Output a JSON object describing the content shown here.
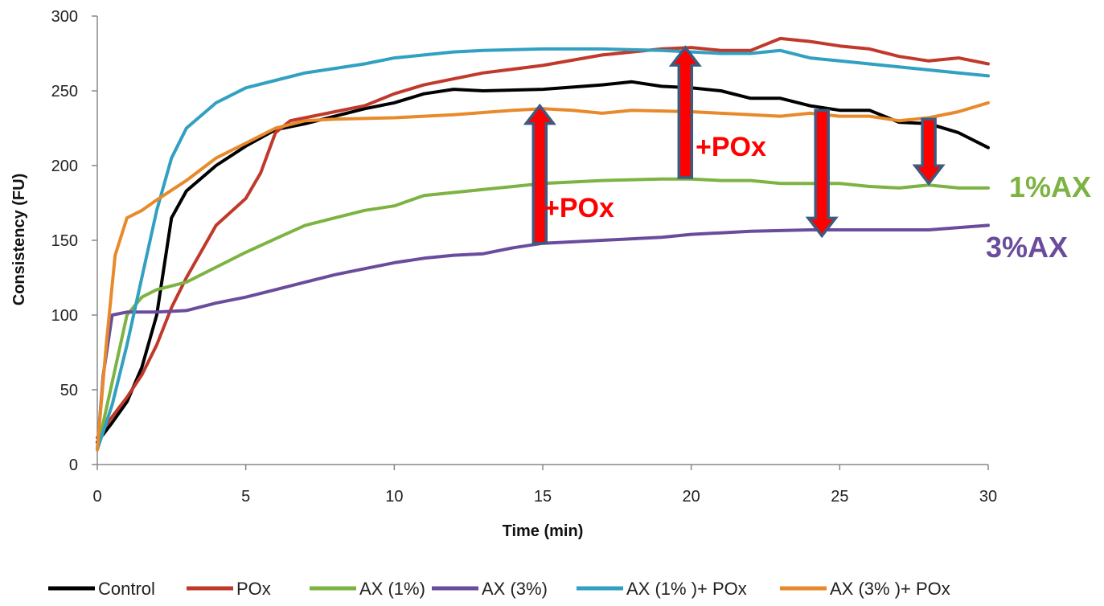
{
  "chart_data": {
    "type": "line",
    "title": "",
    "xlabel": "Time (min)",
    "ylabel": "Consistency (FU)",
    "xlim": [
      0,
      30
    ],
    "ylim": [
      0,
      300
    ],
    "xticks": [
      0,
      5,
      10,
      15,
      20,
      25,
      30
    ],
    "yticks": [
      0,
      50,
      100,
      150,
      200,
      250,
      300
    ],
    "ytick_labels": [
      "0",
      "50",
      "100",
      "150",
      "200",
      "250",
      "300"
    ],
    "grid": false,
    "legend_position": "bottom",
    "series": [
      {
        "name": "Control",
        "color": "#000000",
        "points": [
          [
            0,
            15
          ],
          [
            0.5,
            28
          ],
          [
            1,
            42
          ],
          [
            1.5,
            65
          ],
          [
            2,
            100
          ],
          [
            2.5,
            165
          ],
          [
            3,
            183
          ],
          [
            4,
            200
          ],
          [
            5,
            213
          ],
          [
            6,
            224
          ],
          [
            7,
            228
          ],
          [
            8,
            233
          ],
          [
            9,
            238
          ],
          [
            10,
            242
          ],
          [
            11,
            248
          ],
          [
            12,
            251
          ],
          [
            13,
            250
          ],
          [
            15,
            251
          ],
          [
            17,
            254
          ],
          [
            18,
            256
          ],
          [
            19,
            253
          ],
          [
            20,
            252
          ],
          [
            21,
            250
          ],
          [
            22,
            245
          ],
          [
            23,
            245
          ],
          [
            24,
            240
          ],
          [
            25,
            237
          ],
          [
            26,
            237
          ],
          [
            27,
            229
          ],
          [
            28,
            228
          ],
          [
            29,
            222
          ],
          [
            30,
            212
          ]
        ]
      },
      {
        "name": "POx",
        "color": "#c0392b",
        "points": [
          [
            0,
            18
          ],
          [
            0.5,
            32
          ],
          [
            1,
            45
          ],
          [
            1.5,
            60
          ],
          [
            2,
            80
          ],
          [
            2.5,
            105
          ],
          [
            3,
            125
          ],
          [
            4,
            160
          ],
          [
            5,
            178
          ],
          [
            5.5,
            195
          ],
          [
            6,
            222
          ],
          [
            6.5,
            230
          ],
          [
            7,
            232
          ],
          [
            8,
            236
          ],
          [
            9,
            240
          ],
          [
            10,
            248
          ],
          [
            11,
            254
          ],
          [
            12,
            258
          ],
          [
            13,
            262
          ],
          [
            15,
            267
          ],
          [
            17,
            274
          ],
          [
            19,
            278
          ],
          [
            20,
            279
          ],
          [
            21,
            277
          ],
          [
            22,
            277
          ],
          [
            23,
            285
          ],
          [
            24,
            283
          ],
          [
            25,
            280
          ],
          [
            26,
            278
          ],
          [
            27,
            273
          ],
          [
            28,
            270
          ],
          [
            29,
            272
          ],
          [
            30,
            268
          ]
        ]
      },
      {
        "name": "AX (1%)",
        "color": "#7cb342",
        "points": [
          [
            0,
            10
          ],
          [
            0.5,
            55
          ],
          [
            1,
            100
          ],
          [
            1.5,
            112
          ],
          [
            2,
            117
          ],
          [
            3,
            122
          ],
          [
            4,
            132
          ],
          [
            5,
            142
          ],
          [
            6,
            151
          ],
          [
            7,
            160
          ],
          [
            8,
            165
          ],
          [
            9,
            170
          ],
          [
            10,
            173
          ],
          [
            11,
            180
          ],
          [
            12,
            182
          ],
          [
            13,
            184
          ],
          [
            15,
            188
          ],
          [
            17,
            190
          ],
          [
            19,
            191
          ],
          [
            20,
            191
          ],
          [
            21,
            190
          ],
          [
            22,
            190
          ],
          [
            23,
            188
          ],
          [
            24,
            188
          ],
          [
            25,
            188
          ],
          [
            26,
            186
          ],
          [
            27,
            185
          ],
          [
            28,
            187
          ],
          [
            29,
            185
          ],
          [
            30,
            185
          ]
        ]
      },
      {
        "name": "AX (3%)",
        "color": "#6a4c9c",
        "points": [
          [
            0,
            10
          ],
          [
            0.2,
            60
          ],
          [
            0.5,
            100
          ],
          [
            1,
            102
          ],
          [
            2,
            102
          ],
          [
            3,
            103
          ],
          [
            4,
            108
          ],
          [
            5,
            112
          ],
          [
            6,
            117
          ],
          [
            7,
            122
          ],
          [
            8,
            127
          ],
          [
            9,
            131
          ],
          [
            10,
            135
          ],
          [
            11,
            138
          ],
          [
            12,
            140
          ],
          [
            13,
            141
          ],
          [
            14,
            145
          ],
          [
            15,
            148
          ],
          [
            17,
            150
          ],
          [
            19,
            152
          ],
          [
            20,
            154
          ],
          [
            21,
            155
          ],
          [
            22,
            156
          ],
          [
            24,
            157
          ],
          [
            26,
            157
          ],
          [
            28,
            157
          ],
          [
            30,
            160
          ]
        ]
      },
      {
        "name": "AX (1% )+ POx",
        "color": "#31a0c1",
        "points": [
          [
            0,
            10
          ],
          [
            0.5,
            40
          ],
          [
            1,
            80
          ],
          [
            1.5,
            125
          ],
          [
            2,
            170
          ],
          [
            2.5,
            205
          ],
          [
            3,
            225
          ],
          [
            4,
            242
          ],
          [
            5,
            252
          ],
          [
            6,
            257
          ],
          [
            7,
            262
          ],
          [
            8,
            265
          ],
          [
            9,
            268
          ],
          [
            10,
            272
          ],
          [
            11,
            274
          ],
          [
            12,
            276
          ],
          [
            13,
            277
          ],
          [
            15,
            278
          ],
          [
            17,
            278
          ],
          [
            19,
            277
          ],
          [
            20,
            276
          ],
          [
            21,
            275
          ],
          [
            22,
            275
          ],
          [
            23,
            277
          ],
          [
            24,
            272
          ],
          [
            25,
            270
          ],
          [
            26,
            268
          ],
          [
            27,
            266
          ],
          [
            28,
            264
          ],
          [
            29,
            262
          ],
          [
            30,
            260
          ]
        ]
      },
      {
        "name": "AX (3% )+ POx",
        "color": "#e88a2b",
        "points": [
          [
            0,
            10
          ],
          [
            0.3,
            80
          ],
          [
            0.6,
            140
          ],
          [
            1,
            165
          ],
          [
            1.5,
            170
          ],
          [
            2,
            177
          ],
          [
            3,
            190
          ],
          [
            4,
            205
          ],
          [
            5,
            215
          ],
          [
            6,
            225
          ],
          [
            7,
            230
          ],
          [
            8,
            231
          ],
          [
            10,
            232
          ],
          [
            12,
            234
          ],
          [
            14,
            237
          ],
          [
            15,
            238
          ],
          [
            16,
            237
          ],
          [
            17,
            235
          ],
          [
            18,
            237
          ],
          [
            20,
            236
          ],
          [
            22,
            234
          ],
          [
            23,
            233
          ],
          [
            24,
            235
          ],
          [
            25,
            233
          ],
          [
            26,
            233
          ],
          [
            27,
            230
          ],
          [
            28,
            232
          ],
          [
            29,
            236
          ],
          [
            30,
            242
          ]
        ]
      }
    ],
    "annotations": [
      {
        "text": "+POx",
        "color": "#ff0000"
      },
      {
        "text": "+POx",
        "color": "#ff0000"
      },
      {
        "text": "1%AX",
        "color": "#7cb342"
      },
      {
        "text": "3%AX",
        "color": "#6a4c9c"
      }
    ],
    "arrows": [
      {
        "x": 14.9,
        "from": 148,
        "to": 240,
        "direction": "up"
      },
      {
        "x": 19.8,
        "from": 192,
        "to": 279,
        "direction": "up"
      },
      {
        "x": 24.4,
        "from": 237,
        "to": 153,
        "direction": "down"
      },
      {
        "x": 28.0,
        "from": 231,
        "to": 188,
        "direction": "down"
      }
    ]
  }
}
